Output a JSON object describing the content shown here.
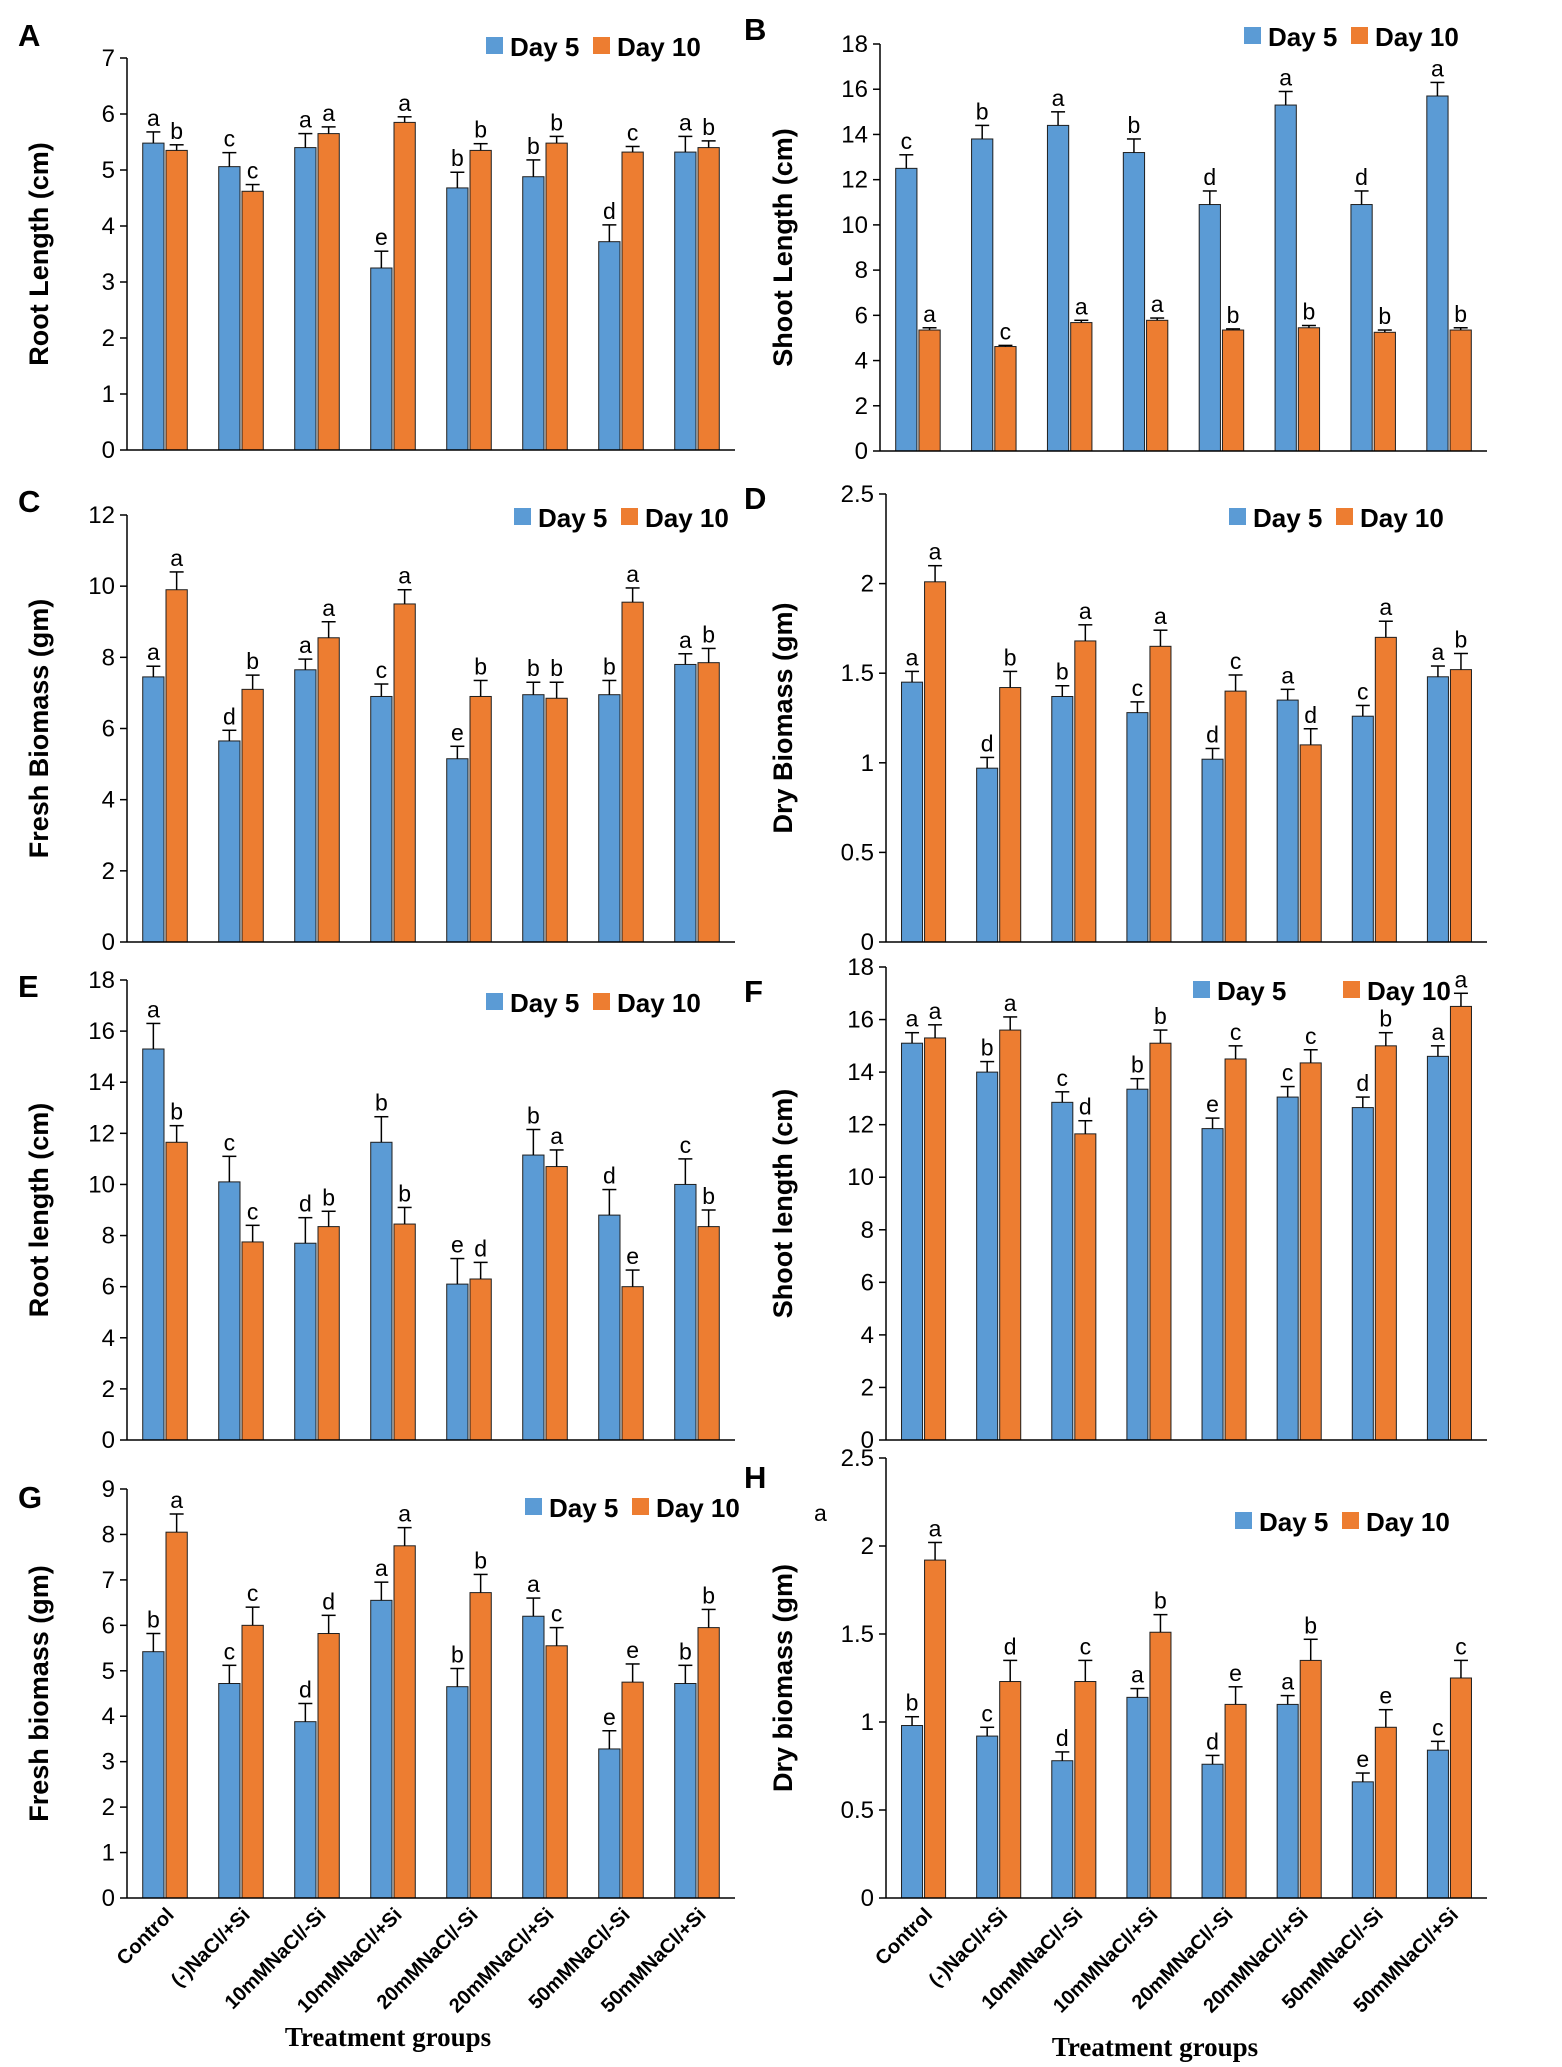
{
  "colors": {
    "day5": "#5b9bd5",
    "day10": "#ed7d31"
  },
  "categories": [
    "Control",
    "(-)NaCl/+Si",
    "10mMNaCl/-Si",
    "10mMNaCl/+Si",
    "20mMNaCl/-Si",
    "20mMNaCl/+Si",
    "50mMNaCl/-Si",
    "50mMNaCl/+Si"
  ],
  "x_axis_title": "Treatment groups",
  "chart_data": [
    {
      "panel": "A",
      "type": "bar",
      "ylabel": "Root Length (cm)",
      "ylim": [
        0,
        7
      ],
      "ytick_step": 1,
      "yticks": [
        "0",
        "1",
        "2",
        "3",
        "4",
        "5",
        "6",
        "7"
      ],
      "legend": [
        "Day 5",
        "Day 10"
      ],
      "series": [
        {
          "name": "Day 5",
          "values": [
            5.48,
            5.06,
            5.4,
            3.25,
            4.68,
            4.88,
            3.72,
            5.32
          ],
          "errors": [
            0.2,
            0.25,
            0.25,
            0.3,
            0.28,
            0.3,
            0.3,
            0.28
          ],
          "letters": [
            "a",
            "c",
            "a",
            "e",
            "b",
            "b",
            "d",
            "a"
          ]
        },
        {
          "name": "Day 10",
          "values": [
            5.35,
            4.62,
            5.65,
            5.85,
            5.35,
            5.48,
            5.32,
            5.4
          ],
          "errors": [
            0.1,
            0.12,
            0.12,
            0.1,
            0.12,
            0.12,
            0.1,
            0.12
          ],
          "letters": [
            "b",
            "c",
            "a",
            "a",
            "b",
            "b",
            "c",
            "b"
          ]
        }
      ]
    },
    {
      "panel": "B",
      "type": "bar",
      "ylabel": "Shoot Length (cm)",
      "ylim": [
        0,
        18
      ],
      "ytick_step": 2,
      "yticks": [
        "0",
        "2",
        "4",
        "6",
        "8",
        "10",
        "12",
        "14",
        "16",
        "18"
      ],
      "legend": [
        "Day 5",
        "Day 10"
      ],
      "series": [
        {
          "name": "Day 5",
          "values": [
            12.5,
            13.8,
            14.4,
            13.2,
            10.9,
            15.3,
            10.9,
            15.7
          ],
          "errors": [
            0.6,
            0.6,
            0.6,
            0.6,
            0.6,
            0.6,
            0.6,
            0.6
          ],
          "letters": [
            "c",
            "b",
            "a",
            "b",
            "d",
            "a",
            "d",
            "a"
          ]
        },
        {
          "name": "Day 10",
          "values": [
            5.35,
            4.62,
            5.68,
            5.78,
            5.35,
            5.45,
            5.25,
            5.35
          ],
          "errors": [
            0.1,
            0.05,
            0.1,
            0.1,
            0.05,
            0.1,
            0.1,
            0.1
          ],
          "letters": [
            "a",
            "c",
            "a",
            "a",
            "b",
            "b",
            "b",
            "b"
          ]
        }
      ]
    },
    {
      "panel": "C",
      "type": "bar",
      "ylabel": "Fresh Biomass (gm)",
      "ylim": [
        0,
        12
      ],
      "ytick_step": 2,
      "yticks": [
        "0",
        "2",
        "4",
        "6",
        "8",
        "10",
        "12"
      ],
      "legend": [
        "Day 5",
        "Day 10"
      ],
      "series": [
        {
          "name": "Day 5",
          "values": [
            7.45,
            5.65,
            7.65,
            6.9,
            5.15,
            6.95,
            6.95,
            7.8
          ],
          "errors": [
            0.3,
            0.3,
            0.3,
            0.35,
            0.35,
            0.35,
            0.4,
            0.3
          ],
          "letters": [
            "a",
            "d",
            "a",
            "c",
            "e",
            "b",
            "b",
            "a"
          ]
        },
        {
          "name": "Day 10",
          "values": [
            9.9,
            7.1,
            8.55,
            9.5,
            6.9,
            6.85,
            9.55,
            7.85
          ],
          "errors": [
            0.5,
            0.4,
            0.45,
            0.4,
            0.45,
            0.45,
            0.4,
            0.4
          ],
          "letters": [
            "a",
            "b",
            "a",
            "a",
            "b",
            "b",
            "a",
            "b"
          ]
        }
      ]
    },
    {
      "panel": "D",
      "type": "bar",
      "ylabel": "Dry Biomass (gm)",
      "ylim": [
        0,
        2.5
      ],
      "ytick_step": 0.5,
      "yticks": [
        "0",
        "0.5",
        "1",
        "1.5",
        "2",
        "2.5"
      ],
      "legend": [
        "Day 5",
        "Day 10"
      ],
      "series": [
        {
          "name": "Day 5",
          "values": [
            1.45,
            0.97,
            1.37,
            1.28,
            1.02,
            1.35,
            1.26,
            1.48
          ],
          "errors": [
            0.06,
            0.06,
            0.06,
            0.06,
            0.06,
            0.06,
            0.06,
            0.06
          ],
          "letters": [
            "a",
            "d",
            "b",
            "c",
            "d",
            "a",
            "c",
            "a"
          ]
        },
        {
          "name": "Day 10",
          "values": [
            2.01,
            1.42,
            1.68,
            1.65,
            1.4,
            1.1,
            1.7,
            1.52
          ],
          "errors": [
            0.09,
            0.09,
            0.09,
            0.09,
            0.09,
            0.09,
            0.09,
            0.09
          ],
          "letters": [
            "a",
            "b",
            "a",
            "a",
            "c",
            "d",
            "a",
            "b"
          ]
        }
      ]
    },
    {
      "panel": "E",
      "type": "bar",
      "ylabel": "Root length (cm)",
      "ylim": [
        0,
        18
      ],
      "ytick_step": 2,
      "yticks": [
        "0",
        "2",
        "4",
        "6",
        "8",
        "10",
        "12",
        "14",
        "16",
        "18"
      ],
      "legend": [
        "Day 5",
        "Day 10"
      ],
      "series": [
        {
          "name": "Day 5",
          "values": [
            15.3,
            10.1,
            7.7,
            11.65,
            6.1,
            11.15,
            8.8,
            10.0
          ],
          "errors": [
            1.0,
            1.0,
            1.0,
            1.0,
            1.0,
            1.0,
            1.0,
            1.0
          ],
          "letters": [
            "a",
            "c",
            "d",
            "b",
            "e",
            "b",
            "d",
            "c"
          ]
        },
        {
          "name": "Day 10",
          "values": [
            11.65,
            7.75,
            8.35,
            8.45,
            6.3,
            10.7,
            6.0,
            8.35
          ],
          "errors": [
            0.65,
            0.65,
            0.6,
            0.65,
            0.65,
            0.65,
            0.65,
            0.65
          ],
          "letters": [
            "b",
            "c",
            "b",
            "b",
            "d",
            "a",
            "e",
            "b"
          ]
        }
      ]
    },
    {
      "panel": "F",
      "type": "bar",
      "ylabel": "Shoot length (cm)",
      "ylim": [
        0,
        18
      ],
      "ytick_step": 2,
      "yticks": [
        "0",
        "2",
        "4",
        "6",
        "8",
        "10",
        "12",
        "14",
        "16",
        "18"
      ],
      "legend": [
        "Day 5",
        "Day 10"
      ],
      "series": [
        {
          "name": "Day 5",
          "values": [
            15.1,
            14.0,
            12.85,
            13.35,
            11.85,
            13.05,
            12.65,
            14.6
          ],
          "errors": [
            0.4,
            0.4,
            0.4,
            0.4,
            0.4,
            0.4,
            0.4,
            0.4
          ],
          "letters": [
            "a",
            "b",
            "c",
            "b",
            "e",
            "c",
            "d",
            "a"
          ]
        },
        {
          "name": "Day 10",
          "values": [
            15.3,
            15.6,
            11.65,
            15.1,
            14.5,
            14.35,
            15.0,
            16.5
          ],
          "errors": [
            0.5,
            0.5,
            0.5,
            0.5,
            0.5,
            0.5,
            0.5,
            0.5
          ],
          "letters": [
            "a",
            "a",
            "d",
            "b",
            "c",
            "c",
            "b",
            "a"
          ]
        }
      ]
    },
    {
      "panel": "G",
      "type": "bar",
      "ylabel": "Fresh biomass (gm)",
      "ylim": [
        0,
        9
      ],
      "ytick_step": 1,
      "yticks": [
        "0",
        "1",
        "2",
        "3",
        "4",
        "5",
        "6",
        "7",
        "8",
        "9"
      ],
      "legend": [
        "Day 5",
        "Day 10"
      ],
      "series": [
        {
          "name": "Day 5",
          "values": [
            5.42,
            4.72,
            3.88,
            6.55,
            4.65,
            6.2,
            3.28,
            4.72
          ],
          "errors": [
            0.4,
            0.4,
            0.4,
            0.4,
            0.4,
            0.4,
            0.4,
            0.4
          ],
          "letters": [
            "b",
            "c",
            "d",
            "a",
            "b",
            "a",
            "e",
            "b"
          ]
        },
        {
          "name": "Day 10",
          "values": [
            8.05,
            6.0,
            5.82,
            7.75,
            6.72,
            5.55,
            4.75,
            5.95
          ],
          "errors": [
            0.4,
            0.4,
            0.4,
            0.4,
            0.4,
            0.4,
            0.4,
            0.4
          ],
          "letters": [
            "a",
            "c",
            "d",
            "a",
            "b",
            "c",
            "e",
            "b"
          ]
        }
      ]
    },
    {
      "panel": "H",
      "type": "bar",
      "ylabel": "Dry biomass (gm)",
      "ylim": [
        0,
        2.5
      ],
      "ytick_step": 0.5,
      "yticks": [
        "0",
        "0.5",
        "1",
        "1.5",
        "2",
        "2.5"
      ],
      "legend": [
        "Day 5",
        "Day 10"
      ],
      "stray_text": "a",
      "series": [
        {
          "name": "Day 5",
          "values": [
            0.98,
            0.92,
            0.78,
            1.14,
            0.76,
            1.1,
            0.66,
            0.84
          ],
          "errors": [
            0.05,
            0.05,
            0.05,
            0.05,
            0.05,
            0.05,
            0.05,
            0.05
          ],
          "letters": [
            "b",
            "c",
            "d",
            "a",
            "d",
            "a",
            "e",
            "c"
          ]
        },
        {
          "name": "Day 10",
          "values": [
            1.92,
            1.23,
            1.23,
            1.51,
            1.1,
            1.35,
            0.97,
            1.25
          ],
          "errors": [
            0.1,
            0.12,
            0.12,
            0.1,
            0.1,
            0.12,
            0.1,
            0.1
          ],
          "letters": [
            "a",
            "d",
            "c",
            "b",
            "e",
            "b",
            "e",
            "c"
          ]
        }
      ]
    }
  ]
}
